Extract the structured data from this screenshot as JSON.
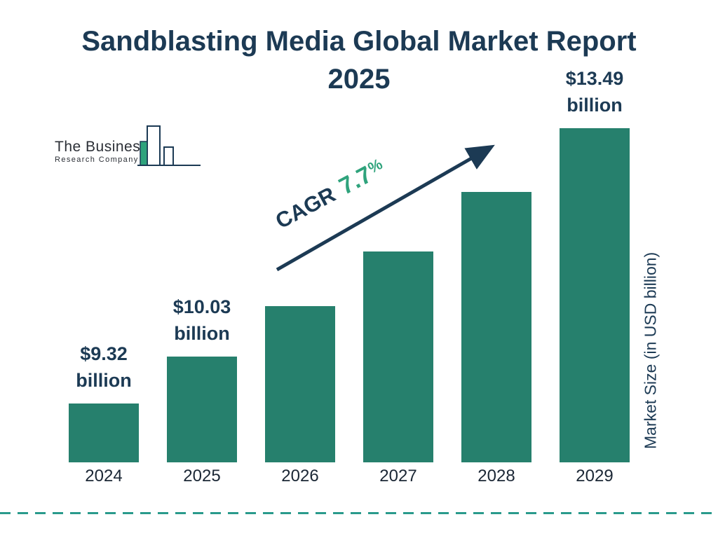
{
  "header": {
    "title_line1": "Sandblasting Media Global Market Report",
    "title_line2": "2025"
  },
  "logo": {
    "name_line1": "The Business",
    "name_line2": "Research Company"
  },
  "annotation": {
    "cagr_label": "CAGR",
    "cagr_value": "7.7",
    "cagr_percent": "%"
  },
  "y_axis": {
    "label": "Market Size (in USD billion)"
  },
  "colors": {
    "bar": "#26806D",
    "navy": "#1C3A54",
    "green": "#2FA37C",
    "dash": "#2A9A8C"
  },
  "chart_data": {
    "type": "bar",
    "title": "Sandblasting Media Global Market Report 2025",
    "ylabel": "Market Size (in USD billion)",
    "unit": "USD billion",
    "cagr": "7.7%",
    "categories": [
      "2024",
      "2025",
      "2026",
      "2027",
      "2028",
      "2029"
    ],
    "values": [
      9.32,
      10.03,
      10.8,
      11.63,
      12.53,
      13.49
    ],
    "value_labels": {
      "2024": "$9.32 billion",
      "2025": "$10.03 billion",
      "2029": "$13.49 billion"
    },
    "bars": [
      {
        "year": "2024",
        "value": 9.32,
        "label_line1": "$9.32",
        "label_line2": "billion"
      },
      {
        "year": "2025",
        "value": 10.03,
        "label_line1": "$10.03",
        "label_line2": "billion"
      },
      {
        "year": "2026",
        "value": 10.8
      },
      {
        "year": "2027",
        "value": 11.63
      },
      {
        "year": "2028",
        "value": 12.53
      },
      {
        "year": "2029",
        "value": 13.49,
        "label_line1": "$13.49",
        "label_line2": "billion"
      }
    ]
  }
}
